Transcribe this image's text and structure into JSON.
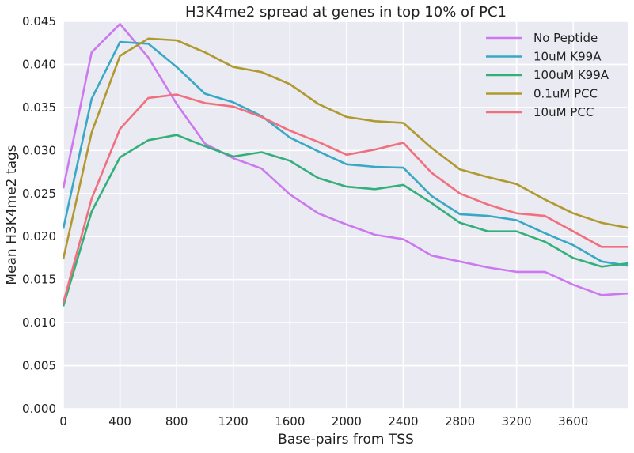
{
  "chart_data": {
    "type": "line",
    "title": "H3K4me2 spread at genes in top 10% of PC1",
    "xlabel": "Base-pairs from TSS",
    "ylabel": "Mean H3K4me2 tags",
    "xlim": [
      0,
      3990
    ],
    "ylim": [
      0,
      0.045
    ],
    "xticks": [
      "0",
      "400",
      "800",
      "1200",
      "1600",
      "2000",
      "2400",
      "2800",
      "3200",
      "3600"
    ],
    "yticks": [
      "0.000",
      "0.005",
      "0.010",
      "0.015",
      "0.020",
      "0.025",
      "0.030",
      "0.035",
      "0.040",
      "0.045"
    ],
    "grid": true,
    "legend_position": "top-right",
    "x": [
      0,
      200,
      400,
      600,
      800,
      1000,
      1200,
      1400,
      1600,
      1800,
      2000,
      2200,
      2400,
      2600,
      2800,
      3000,
      3200,
      3400,
      3600,
      3800,
      3990
    ],
    "series": [
      {
        "name": "No Peptide",
        "color": "#cc79f0",
        "values": [
          0.0256,
          0.0414,
          0.0447,
          0.0408,
          0.0354,
          0.0308,
          0.0291,
          0.0279,
          0.0249,
          0.0227,
          0.0214,
          0.0202,
          0.0197,
          0.0178,
          0.0171,
          0.0164,
          0.0159,
          0.0159,
          0.0144,
          0.0132,
          0.0134
        ]
      },
      {
        "name": "10uM K99A",
        "color": "#38a8c4",
        "values": [
          0.0209,
          0.036,
          0.0426,
          0.0424,
          0.0397,
          0.0366,
          0.0356,
          0.034,
          0.0315,
          0.0299,
          0.0284,
          0.0281,
          0.028,
          0.0247,
          0.0226,
          0.0224,
          0.0219,
          0.0204,
          0.019,
          0.0171,
          0.0166
        ]
      },
      {
        "name": "100uM K99A",
        "color": "#33b07a",
        "values": [
          0.0119,
          0.0229,
          0.0292,
          0.0312,
          0.0318,
          0.0305,
          0.0293,
          0.0298,
          0.0288,
          0.0268,
          0.0258,
          0.0255,
          0.026,
          0.0239,
          0.0216,
          0.0206,
          0.0206,
          0.0194,
          0.0175,
          0.0165,
          0.0169
        ]
      },
      {
        "name": "0.1uM PCC",
        "color": "#b09a30",
        "values": [
          0.0174,
          0.0321,
          0.041,
          0.043,
          0.0428,
          0.0414,
          0.0397,
          0.0391,
          0.0377,
          0.0354,
          0.0339,
          0.0334,
          0.0332,
          0.0303,
          0.0278,
          0.0269,
          0.0261,
          0.0243,
          0.0227,
          0.0216,
          0.021
        ]
      },
      {
        "name": "10uM PCC",
        "color": "#f0707f",
        "values": [
          0.0123,
          0.0244,
          0.0325,
          0.0361,
          0.0365,
          0.0355,
          0.0351,
          0.0339,
          0.0323,
          0.031,
          0.0295,
          0.0301,
          0.0309,
          0.0274,
          0.025,
          0.0237,
          0.0227,
          0.0224,
          0.0206,
          0.0188,
          0.0188
        ]
      }
    ]
  }
}
